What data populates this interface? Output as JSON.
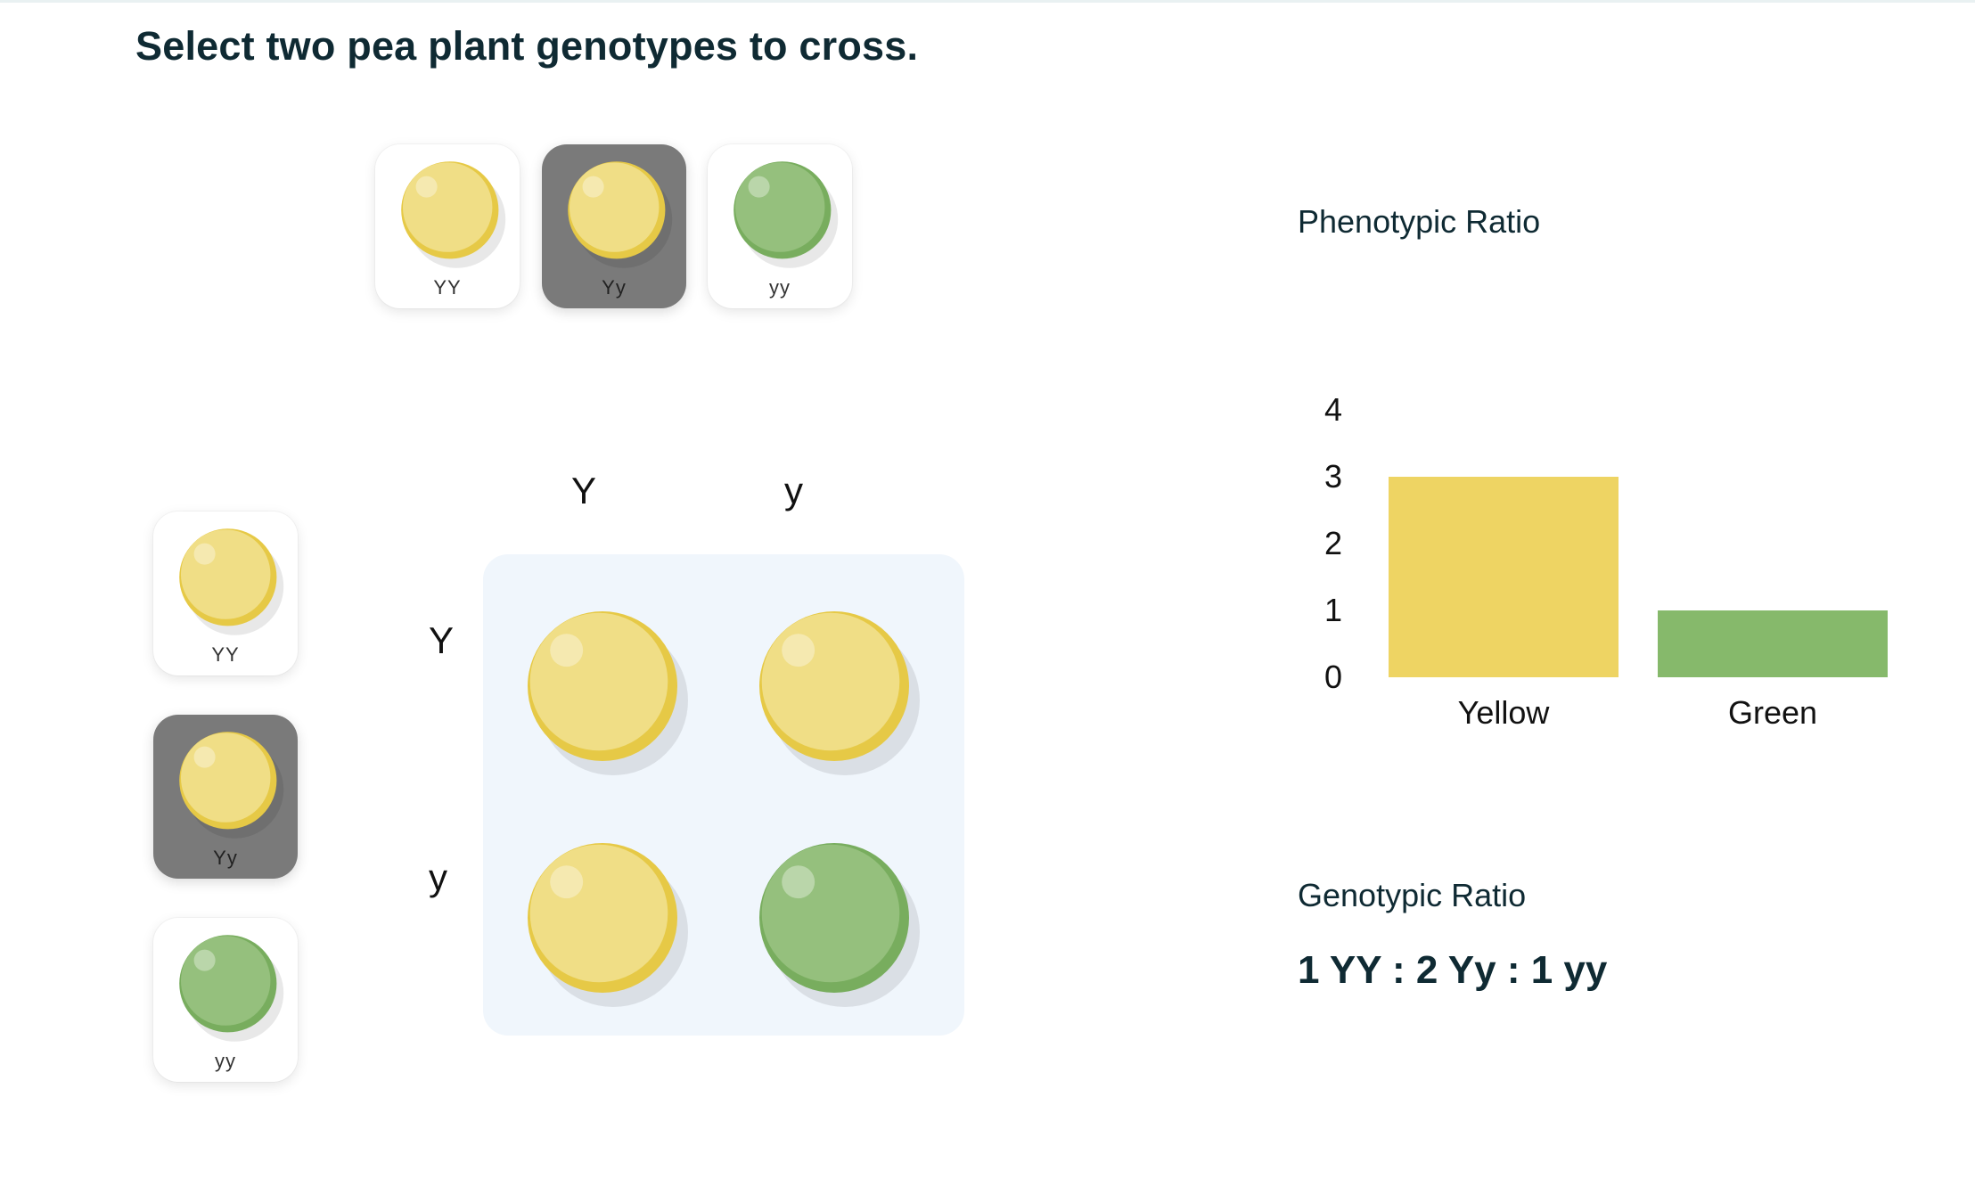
{
  "title": "Select two pea plant genotypes to cross.",
  "colors": {
    "yellow_pea": "#eed463",
    "green_pea": "#86b96b",
    "selected_card": "#7a7a7a",
    "grid_bg": "#f0f6fc"
  },
  "parent1_options": [
    {
      "genotype": "YY",
      "color": "yellow",
      "selected": false
    },
    {
      "genotype": "Yy",
      "color": "yellow",
      "selected": true
    },
    {
      "genotype": "yy",
      "color": "green",
      "selected": false
    }
  ],
  "parent2_options": [
    {
      "genotype": "YY",
      "color": "yellow",
      "selected": false
    },
    {
      "genotype": "Yy",
      "color": "yellow",
      "selected": true
    },
    {
      "genotype": "yy",
      "color": "green",
      "selected": false
    }
  ],
  "punnett": {
    "top_alleles": [
      "Y",
      "y"
    ],
    "left_alleles": [
      "Y",
      "y"
    ],
    "cells": [
      [
        "yellow",
        "yellow"
      ],
      [
        "yellow",
        "green"
      ]
    ]
  },
  "phenotypic": {
    "title": "Phenotypic Ratio"
  },
  "chart_data": {
    "type": "bar",
    "categories": [
      "Yellow",
      "Green"
    ],
    "values": [
      3,
      1
    ],
    "bar_colors": [
      "#eed463",
      "#86b96b"
    ],
    "ylim": [
      0,
      4
    ],
    "yticks": [
      0,
      1,
      2,
      3,
      4
    ],
    "grid": false
  },
  "genotypic": {
    "title": "Genotypic Ratio",
    "ratio": "1 YY : 2 Yy : 1 yy"
  }
}
